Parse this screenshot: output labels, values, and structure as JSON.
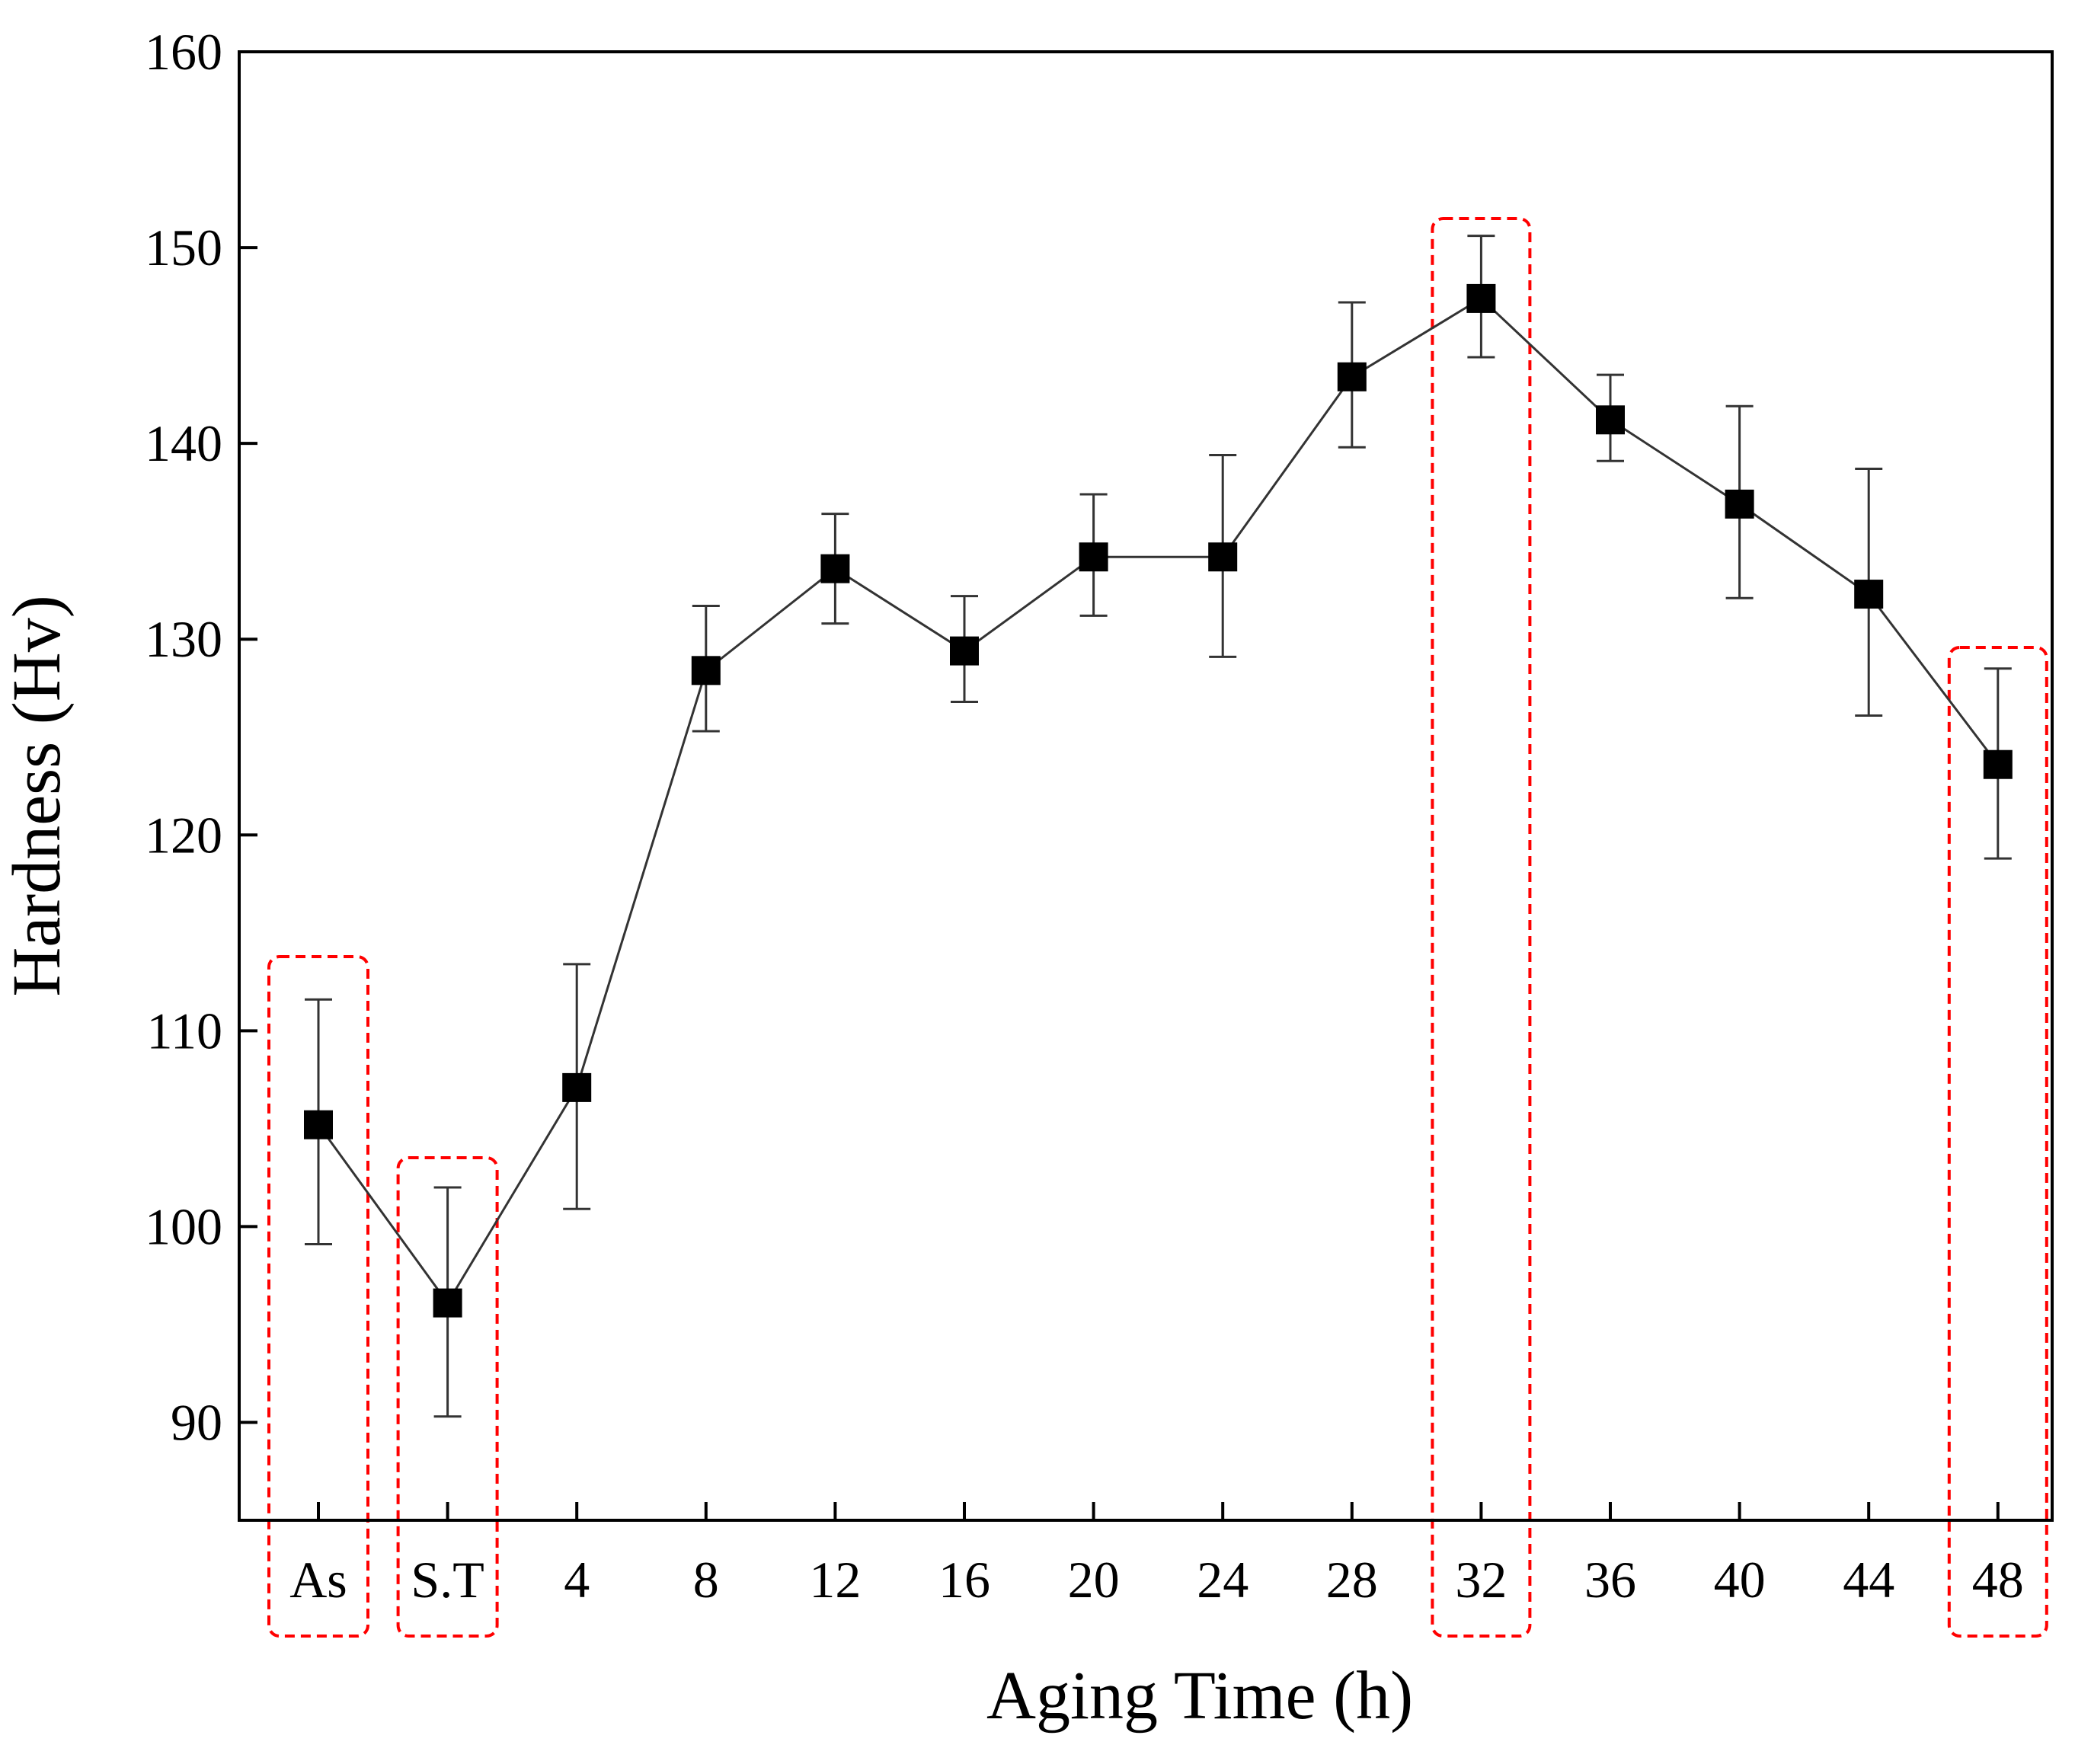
{
  "chart_data": {
    "type": "line",
    "title": "",
    "xlabel": "Aging Time (h)",
    "ylabel": "Hardness (Hv)",
    "categories": [
      "As",
      "S.T",
      "4",
      "8",
      "12",
      "16",
      "20",
      "24",
      "28",
      "32",
      "36",
      "40",
      "44",
      "48"
    ],
    "series": [
      {
        "name": "Hardness",
        "values": [
          105.2,
          96.1,
          107.1,
          128.4,
          133.6,
          129.4,
          134.2,
          134.2,
          143.4,
          147.4,
          141.2,
          136.9,
          132.3,
          123.6
        ],
        "error_low": [
          99.1,
          90.3,
          100.9,
          125.3,
          130.8,
          126.8,
          131.2,
          129.1,
          139.8,
          144.4,
          139.1,
          132.1,
          126.1,
          118.8
        ],
        "error_high": [
          111.6,
          102.0,
          113.4,
          131.7,
          136.4,
          132.2,
          137.4,
          139.4,
          147.2,
          150.6,
          143.5,
          141.9,
          138.7,
          128.5
        ],
        "color": "#000000",
        "marker": "square"
      }
    ],
    "ylim": [
      85,
      160
    ],
    "yticks": [
      90,
      100,
      110,
      120,
      130,
      140,
      150,
      160
    ],
    "grid": false,
    "legend": "none",
    "highlighted_categories": [
      "As",
      "S.T",
      "32",
      "48"
    ],
    "highlight_color": "#ff0000"
  }
}
